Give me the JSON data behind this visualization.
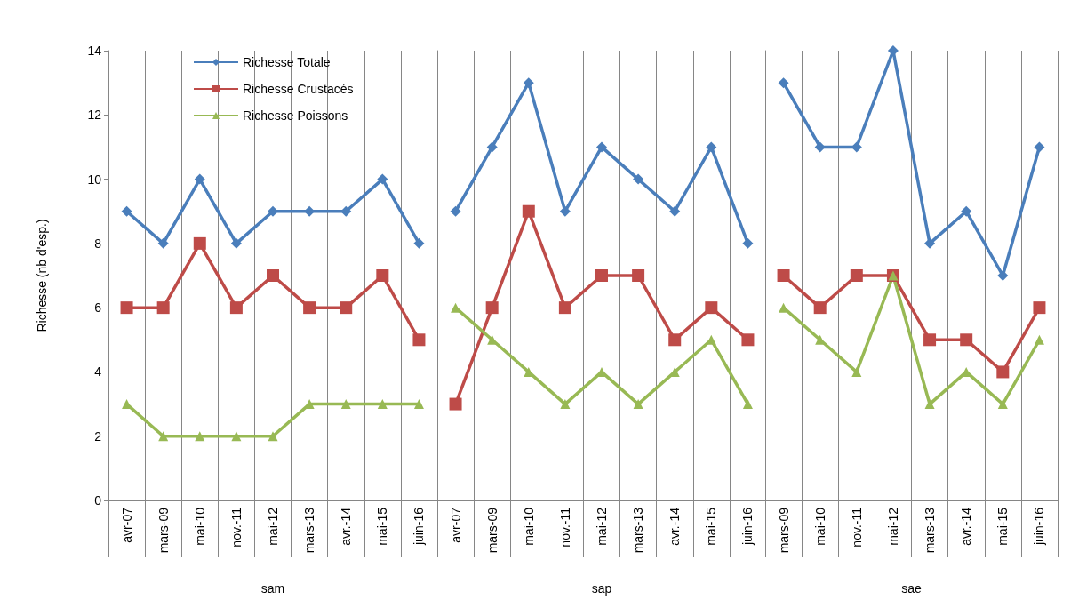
{
  "chart_data": [
    {
      "type": "line",
      "ylabel": "Richesse (nb d'esp.)",
      "xlabel": "sam",
      "categories": [
        "avr-07",
        "mars-09",
        "mai-10",
        "nov.-11",
        "mai-12",
        "mars-13",
        "avr.-14",
        "mai-15",
        "juin-16"
      ],
      "ylim": [
        0,
        14
      ],
      "yticks": [
        0,
        2,
        4,
        6,
        8,
        10,
        12,
        14
      ],
      "grid": "x",
      "legend": "top left",
      "series": [
        {
          "name": "Richesse Totale",
          "color": "#4a7ebb",
          "marker": "diamond",
          "values": [
            9,
            8,
            10,
            8,
            9,
            9,
            9,
            10,
            8
          ]
        },
        {
          "name": "Richesse Crustacés",
          "color": "#be4b48",
          "marker": "square",
          "values": [
            6,
            6,
            8,
            6,
            7,
            6,
            6,
            7,
            5
          ]
        },
        {
          "name": "Richesse Poissons",
          "color": "#98b954",
          "marker": "triangle",
          "values": [
            3,
            2,
            2,
            2,
            2,
            3,
            3,
            3,
            3
          ]
        }
      ]
    },
    {
      "type": "line",
      "xlabel": "sap",
      "categories": [
        "avr-07",
        "mars-09",
        "mai-10",
        "nov.-11",
        "mai-12",
        "mars-13",
        "avr.-14",
        "mai-15",
        "juin-16"
      ],
      "ylim": [
        0,
        14
      ],
      "tick_labels": "x",
      "grid": "x",
      "series": [
        {
          "color": "#4a7ebb",
          "marker": "diamond",
          "values": [
            9,
            11,
            13,
            9,
            11,
            10,
            9,
            11,
            8
          ]
        },
        {
          "color": "#be4b48",
          "marker": "square",
          "values": [
            3,
            6,
            9,
            6,
            7,
            7,
            5,
            6,
            5
          ]
        },
        {
          "color": "#98b954",
          "marker": "triangle",
          "values": [
            6,
            5,
            4,
            3,
            4,
            3,
            4,
            5,
            3
          ]
        }
      ]
    },
    {
      "type": "line",
      "xlabel": "sae",
      "categories": [
        "mars-09",
        "mai-10",
        "nov.-11",
        "mai-12",
        "mars-13",
        "avr.-14",
        "mai-15",
        "juin-16"
      ],
      "ylim": [
        0,
        14
      ],
      "tick_labels": "x",
      "grid": "x",
      "series": [
        {
          "color": "#4a7ebb",
          "marker": "diamond",
          "values": [
            13,
            11,
            11,
            14,
            8,
            9,
            7,
            11
          ]
        },
        {
          "color": "#be4b48",
          "marker": "square",
          "values": [
            7,
            6,
            7,
            7,
            5,
            5,
            4,
            6
          ]
        },
        {
          "color": "#98b954",
          "marker": "triangle",
          "values": [
            6,
            5,
            4,
            7,
            3,
            4,
            3,
            5
          ]
        }
      ]
    }
  ]
}
